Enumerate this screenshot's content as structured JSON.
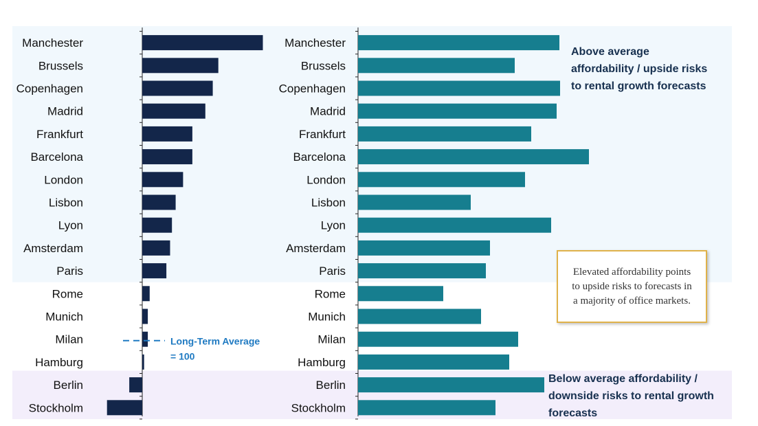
{
  "colors": {
    "left_bar": "#13264a",
    "right_bar": "#167e8f",
    "above_zone": "#f1f8fd",
    "below_zone": "#f3eefb",
    "avg_line": "#1f7ac2",
    "note_border": "#e0b24a",
    "zone_text": "#17304f"
  },
  "annotations": {
    "above_lines": [
      "Above average",
      "affordability / upside risks",
      "to rental growth forecasts"
    ],
    "below_lines": [
      "Below average affordability /",
      "downside risks to rental growth",
      "forecasts"
    ],
    "avg_lines": [
      "Long-Term Average",
      "= 100"
    ],
    "note": "Elevated affordability points to upside risks to forecasts in a majority of office markets."
  },
  "chart_data": [
    {
      "type": "bar",
      "orientation": "horizontal",
      "baseline": 100,
      "categories": [
        "Manchester",
        "Brussels",
        "Copenhagen",
        "Madrid",
        "Frankfurt",
        "Barcelona",
        "London",
        "Lisbon",
        "Lyon",
        "Amsterdam",
        "Paris",
        "Rome",
        "Munich",
        "Milan",
        "Hamburg",
        "Berlin",
        "Stockholm"
      ],
      "values": [
        165,
        141,
        138,
        134,
        127,
        127,
        122,
        118,
        116,
        115,
        113,
        104,
        103,
        103,
        101,
        93,
        81
      ]
    },
    {
      "type": "bar",
      "orientation": "horizontal",
      "categories": [
        "Manchester",
        "Brussels",
        "Copenhagen",
        "Madrid",
        "Frankfurt",
        "Barcelona",
        "London",
        "Lisbon",
        "Lyon",
        "Amsterdam",
        "Paris",
        "Rome",
        "Munich",
        "Milan",
        "Hamburg",
        "Berlin",
        "Stockholm"
      ],
      "values": [
        293,
        228,
        294,
        289,
        252,
        336,
        243,
        164,
        281,
        192,
        186,
        124,
        179,
        233,
        220,
        271,
        200
      ]
    }
  ]
}
